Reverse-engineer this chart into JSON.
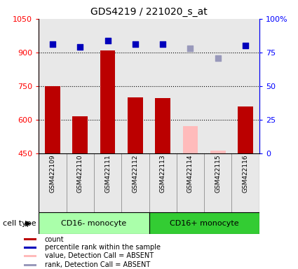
{
  "title": "GDS4219 / 221020_s_at",
  "samples": [
    "GSM422109",
    "GSM422110",
    "GSM422111",
    "GSM422112",
    "GSM422113",
    "GSM422114",
    "GSM422115",
    "GSM422116"
  ],
  "count_values": [
    750,
    615,
    910,
    700,
    695,
    570,
    462,
    660
  ],
  "count_absent": [
    false,
    false,
    false,
    false,
    false,
    true,
    true,
    false
  ],
  "percentile_values": [
    81,
    79,
    84,
    81,
    81,
    78,
    71,
    80
  ],
  "percentile_absent": [
    false,
    false,
    false,
    false,
    false,
    true,
    true,
    false
  ],
  "ylim_left": [
    450,
    1050
  ],
  "ylim_right": [
    0,
    100
  ],
  "yticks_left": [
    450,
    600,
    750,
    900,
    1050
  ],
  "yticks_right": [
    0,
    25,
    50,
    75,
    100
  ],
  "ytick_labels_right": [
    "0",
    "25",
    "50",
    "75",
    "100%"
  ],
  "bar_color_present": "#bb0000",
  "bar_color_absent": "#ffbbbb",
  "dot_color_present": "#0000bb",
  "dot_color_absent": "#9999bb",
  "bar_bottom": 450,
  "cell_type_groups": [
    {
      "label": "CD16- monocyte",
      "start": 0,
      "end": 4,
      "color": "#aaffaa"
    },
    {
      "label": "CD16+ monocyte",
      "start": 4,
      "end": 8,
      "color": "#33cc33"
    }
  ],
  "legend_items": [
    {
      "color": "#bb0000",
      "label": "count"
    },
    {
      "color": "#0000bb",
      "label": "percentile rank within the sample"
    },
    {
      "color": "#ffbbbb",
      "label": "value, Detection Call = ABSENT"
    },
    {
      "color": "#9999bb",
      "label": "rank, Detection Call = ABSENT"
    }
  ],
  "fig_width": 4.25,
  "fig_height": 3.84,
  "dpi": 100,
  "bg_color": "#e8e8e8"
}
